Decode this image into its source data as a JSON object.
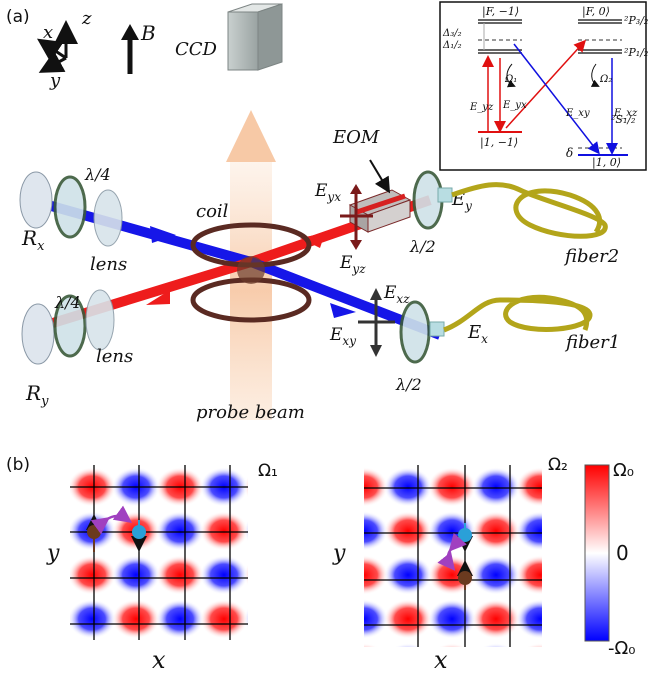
{
  "panel_a": {
    "tag": "(a)",
    "axes": {
      "x": "x",
      "y": "y",
      "z": "z",
      "b": "B"
    },
    "labels": {
      "ccd": "CCD",
      "eom": "EOM",
      "coil": "coil",
      "probe": "probe beam",
      "quarter_top": "λ/4",
      "quarter_bot": "λ/4",
      "lens_top": "lens",
      "lens_bot": "lens",
      "rx": "R",
      "rx_sub": "x",
      "ry": "R",
      "ry_sub": "y",
      "fiber1": "fiber1",
      "fiber2": "fiber2",
      "half_top": "λ/2",
      "half_bot": "λ/2",
      "eyx": "E",
      "eyx_sub": "yx",
      "eyz": "E",
      "eyz_sub": "yz",
      "exz": "E",
      "exz_sub": "xz",
      "exy": "E",
      "exy_sub": "xy",
      "ey": "E",
      "ey_sub": "y",
      "ex": "E",
      "ex_sub": "x"
    }
  },
  "inset": {
    "state_f_minus1": "|F, −1⟩",
    "state_f_0": "|F, 0⟩",
    "p32": "²P₃/₂",
    "p12": "²P₁/₂",
    "s12": "²S₁/₂",
    "delta32": "Δ₃/₂",
    "delta12": "Δ₁/₂",
    "omega1": "Ω₁",
    "omega2": "Ω₂",
    "e_yz": "E_yz",
    "e_yx": "E_yx",
    "e_xy": "E_xy",
    "e_xz": "E_xz",
    "ket_left": "|1, −1⟩",
    "ket_right": "|1, 0⟩",
    "delta": "δ"
  },
  "panel_b": {
    "tag": "(b)",
    "left": {
      "omega": "Ω₁",
      "xlabel": "x",
      "ylabel": "y"
    },
    "right": {
      "omega": "Ω₂",
      "xlabel": "x",
      "ylabel": "y"
    },
    "colorbar": {
      "top": "Ω₀",
      "mid": "0",
      "bottom": "-Ω₀"
    }
  },
  "colors": {
    "beam_red": "#ee1c1c",
    "beam_blue": "#1a1aee",
    "coil": "#5a2a22",
    "fiber": "#b3a51a",
    "probe": "#f7c9a6",
    "spin_brown": "#6b3a1f",
    "spin_cyan": "#2aa0d8",
    "hop_arrow": "#a040c0"
  }
}
